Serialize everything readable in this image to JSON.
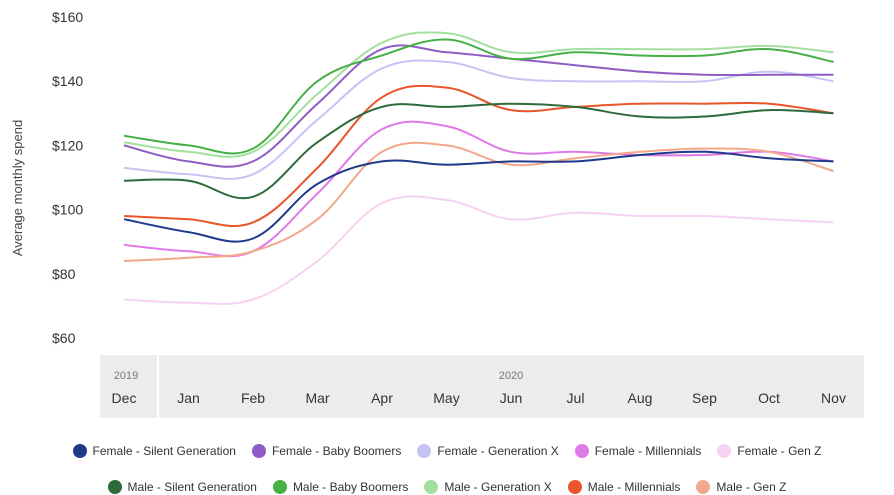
{
  "chart_data": {
    "type": "line",
    "ylabel": "Average monthly spend",
    "xlabel": "",
    "ylim": [
      60,
      160
    ],
    "yticks": [
      "$60",
      "$80",
      "$100",
      "$120",
      "$140",
      "$160"
    ],
    "year_labels": [
      "2019",
      "2020"
    ],
    "categories": [
      "Dec",
      "Jan",
      "Feb",
      "Mar",
      "Apr",
      "May",
      "Jun",
      "Jul",
      "Aug",
      "Sep",
      "Oct",
      "Nov"
    ],
    "legend_position": "bottom",
    "grid": false,
    "series": [
      {
        "name": "Female - Silent Generation",
        "color": "#1f3a8a",
        "values": [
          97,
          93,
          91,
          108,
          115,
          114,
          115,
          115,
          117,
          118,
          116,
          115
        ]
      },
      {
        "name": "Female - Baby Boomers",
        "color": "#8e5cc4",
        "values": [
          120,
          115,
          115,
          133,
          150,
          149,
          147,
          145,
          143,
          142,
          142,
          142
        ]
      },
      {
        "name": "Female - Generation X",
        "color": "#c4c4f5",
        "values": [
          113,
          111,
          111,
          128,
          144,
          146,
          141,
          140,
          140,
          140,
          143,
          140
        ]
      },
      {
        "name": "Female - Millennials",
        "color": "#df7ae6",
        "values": [
          89,
          87,
          87,
          105,
          125,
          126,
          118,
          118,
          117,
          117,
          118,
          115
        ]
      },
      {
        "name": "Female - Gen Z",
        "color": "#f6d3f3",
        "values": [
          72,
          71,
          72,
          84,
          102,
          103,
          97,
          99,
          98,
          98,
          97,
          96
        ]
      },
      {
        "name": "Male - Silent Generation",
        "color": "#2e6b3a",
        "values": [
          109,
          109,
          104,
          121,
          132,
          132,
          133,
          132,
          129,
          129,
          131,
          130
        ]
      },
      {
        "name": "Male - Baby Boomers",
        "color": "#45b045",
        "values": [
          123,
          120,
          119,
          140,
          148,
          153,
          147,
          149,
          148,
          148,
          150,
          146
        ]
      },
      {
        "name": "Male - Generation X",
        "color": "#a3e0a0",
        "values": [
          121,
          118,
          118,
          136,
          152,
          155,
          149,
          150,
          150,
          150,
          151,
          149
        ]
      },
      {
        "name": "Male - Millennials",
        "color": "#e8562a",
        "values": [
          98,
          97,
          96,
          113,
          135,
          138,
          131,
          132,
          133,
          133,
          133,
          130
        ]
      },
      {
        "name": "Male - Gen Z",
        "color": "#f2a88a",
        "values": [
          84,
          85,
          87,
          97,
          118,
          120,
          114,
          116,
          118,
          119,
          118,
          112
        ]
      }
    ]
  }
}
